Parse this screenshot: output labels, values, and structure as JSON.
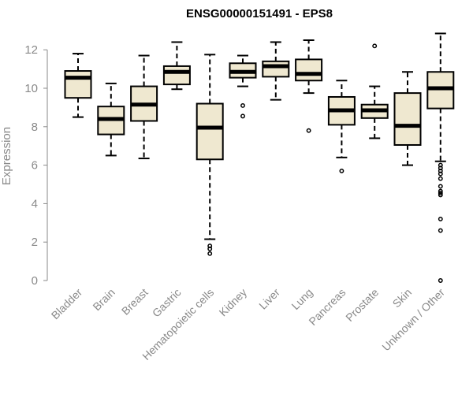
{
  "chart_data": {
    "type": "box",
    "title": "ENSG00000151491 - EPS8",
    "xlabel": "",
    "ylabel": "Expression",
    "ylim": [
      0,
      12.9
    ],
    "yticks": [
      0,
      2,
      4,
      6,
      8,
      10,
      12
    ],
    "grid": false,
    "legend": "none",
    "colors": {
      "box_fill": "#efe8d0",
      "stroke": "#000000",
      "text": "#8a8a8a"
    },
    "categories": [
      "Bladder",
      "Brain",
      "Breast",
      "Gastric",
      "Hematopoietic cells",
      "Kidney",
      "Liver",
      "Lung",
      "Pancreas",
      "Prostate",
      "Skin",
      "Unknown / Other"
    ],
    "boxes": [
      {
        "category": "Bladder",
        "whisker_low": 8.5,
        "q1": 9.5,
        "median": 10.55,
        "q3": 10.9,
        "whisker_high": 11.8,
        "outliers": []
      },
      {
        "category": "Brain",
        "whisker_low": 6.5,
        "q1": 7.6,
        "median": 8.4,
        "q3": 9.05,
        "whisker_high": 10.25,
        "outliers": []
      },
      {
        "category": "Breast",
        "whisker_low": 6.35,
        "q1": 8.3,
        "median": 9.15,
        "q3": 10.1,
        "whisker_high": 11.7,
        "outliers": []
      },
      {
        "category": "Gastric",
        "whisker_low": 9.95,
        "q1": 10.2,
        "median": 10.85,
        "q3": 11.15,
        "whisker_high": 12.4,
        "outliers": []
      },
      {
        "category": "Hematopoietic cells",
        "whisker_low": 2.15,
        "q1": 6.3,
        "median": 7.95,
        "q3": 9.2,
        "whisker_high": 11.75,
        "outliers": [
          1.8,
          1.65,
          1.4
        ]
      },
      {
        "category": "Kidney",
        "whisker_low": 10.1,
        "q1": 10.55,
        "median": 10.85,
        "q3": 11.3,
        "whisker_high": 11.7,
        "outliers": [
          9.1,
          8.55
        ]
      },
      {
        "category": "Liver",
        "whisker_low": 9.4,
        "q1": 10.6,
        "median": 11.15,
        "q3": 11.4,
        "whisker_high": 12.4,
        "outliers": []
      },
      {
        "category": "Lung",
        "whisker_low": 9.75,
        "q1": 10.4,
        "median": 10.75,
        "q3": 11.5,
        "whisker_high": 12.5,
        "outliers": [
          7.8
        ]
      },
      {
        "category": "Pancreas",
        "whisker_low": 6.4,
        "q1": 8.1,
        "median": 8.85,
        "q3": 9.55,
        "whisker_high": 10.4,
        "outliers": [
          5.7
        ]
      },
      {
        "category": "Prostate",
        "whisker_low": 7.4,
        "q1": 8.45,
        "median": 8.85,
        "q3": 9.15,
        "whisker_high": 10.1,
        "outliers": [
          12.2
        ]
      },
      {
        "category": "Skin",
        "whisker_low": 6.0,
        "q1": 7.05,
        "median": 8.05,
        "q3": 9.75,
        "whisker_high": 10.85,
        "outliers": []
      },
      {
        "category": "Unknown / Other",
        "whisker_low": 6.2,
        "q1": 8.95,
        "median": 10.0,
        "q3": 10.85,
        "whisker_high": 12.85,
        "outliers": [
          6.0,
          5.85,
          5.7,
          5.55,
          5.3,
          4.9,
          4.65,
          4.55,
          4.45,
          3.2,
          2.6,
          0.0
        ]
      }
    ]
  }
}
